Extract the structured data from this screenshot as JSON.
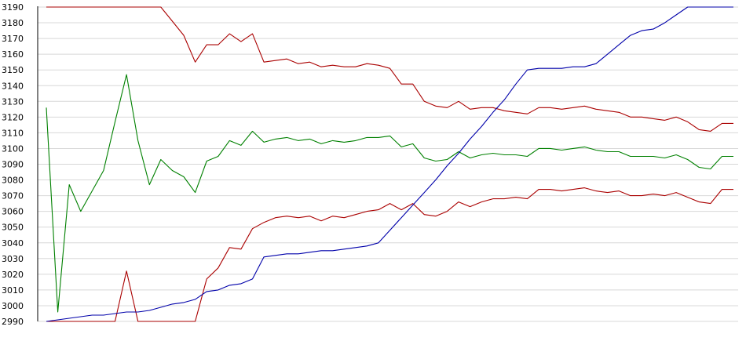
{
  "chart_data": {
    "type": "line",
    "title": "",
    "xlabel": "",
    "ylabel": "",
    "ylim": [
      2990,
      3190
    ],
    "yticks": [
      2990,
      3000,
      3010,
      3020,
      3030,
      3040,
      3050,
      3060,
      3070,
      3080,
      3090,
      3100,
      3110,
      3120,
      3130,
      3140,
      3150,
      3160,
      3170,
      3180,
      3190
    ],
    "x": [
      0,
      1,
      2,
      3,
      4,
      5,
      6,
      7,
      8,
      9,
      10,
      11,
      12,
      13,
      14,
      15,
      16,
      17,
      18,
      19,
      20,
      21,
      22,
      23,
      24,
      25,
      26,
      27,
      28,
      29,
      30,
      31,
      32,
      33,
      34,
      35,
      36,
      37,
      38,
      39,
      40,
      41,
      42,
      43,
      44,
      45,
      46,
      47,
      48,
      49,
      50,
      51,
      52,
      53,
      54,
      55,
      56,
      57,
      58,
      59,
      60
    ],
    "grid": "horizontal",
    "legend": "none",
    "series": [
      {
        "color": "#aa0000",
        "values": [
          3190,
          3190,
          3190,
          3190,
          3190,
          3190,
          3190,
          3190,
          3190,
          3190,
          3190,
          3181,
          3172,
          3155,
          3166,
          3166,
          3173,
          3168,
          3173,
          3155,
          3156,
          3157,
          3154,
          3155,
          3152,
          3153,
          3152,
          3152,
          3154,
          3153,
          3151,
          3141,
          3141,
          3130,
          3127,
          3126,
          3130,
          3125,
          3126,
          3126,
          3124,
          3123,
          3122,
          3126,
          3126,
          3125,
          3126,
          3127,
          3125,
          3124,
          3123,
          3120,
          3120,
          3119,
          3118,
          3120,
          3117,
          3112,
          3111,
          3116,
          3116
        ]
      },
      {
        "color": "#008000",
        "values": [
          3126,
          2996,
          3077,
          3060,
          3073,
          3086,
          3117,
          3147,
          3105,
          3077,
          3093,
          3086,
          3082,
          3072,
          3092,
          3095,
          3105,
          3102,
          3111,
          3104,
          3106,
          3107,
          3105,
          3106,
          3103,
          3105,
          3104,
          3105,
          3107,
          3107,
          3108,
          3101,
          3103,
          3094,
          3092,
          3093,
          3098,
          3094,
          3096,
          3097,
          3096,
          3096,
          3095,
          3100,
          3100,
          3099,
          3100,
          3101,
          3099,
          3098,
          3098,
          3095,
          3095,
          3095,
          3094,
          3096,
          3093,
          3088,
          3087,
          3095,
          3095
        ]
      },
      {
        "color": "#aa0000",
        "values": [
          2990,
          2990,
          2990,
          2990,
          2990,
          2990,
          2990,
          3022,
          2990,
          2990,
          2990,
          2990,
          2990,
          2990,
          3017,
          3024,
          3037,
          3036,
          3049,
          3053,
          3056,
          3057,
          3056,
          3057,
          3054,
          3057,
          3056,
          3058,
          3060,
          3061,
          3065,
          3061,
          3065,
          3058,
          3057,
          3060,
          3066,
          3063,
          3066,
          3068,
          3068,
          3069,
          3068,
          3074,
          3074,
          3073,
          3074,
          3075,
          3073,
          3072,
          3073,
          3070,
          3070,
          3071,
          3070,
          3072,
          3069,
          3066,
          3065,
          3074,
          3074
        ]
      },
      {
        "color": "#0000aa",
        "values": [
          2990,
          2991,
          2992,
          2993,
          2994,
          2994,
          2995,
          2996,
          2996,
          2997,
          2999,
          3001,
          3002,
          3004,
          3009,
          3010,
          3013,
          3014,
          3017,
          3031,
          3032,
          3033,
          3033,
          3034,
          3035,
          3035,
          3036,
          3037,
          3038,
          3040,
          3048,
          3056,
          3064,
          3072,
          3080,
          3089,
          3097,
          3106,
          3114,
          3123,
          3131,
          3141,
          3150,
          3151,
          3151,
          3151,
          3152,
          3152,
          3154,
          3160,
          3166,
          3172,
          3175,
          3176,
          3180,
          3185,
          3190,
          3190,
          3190,
          3190,
          3190
        ]
      }
    ]
  }
}
